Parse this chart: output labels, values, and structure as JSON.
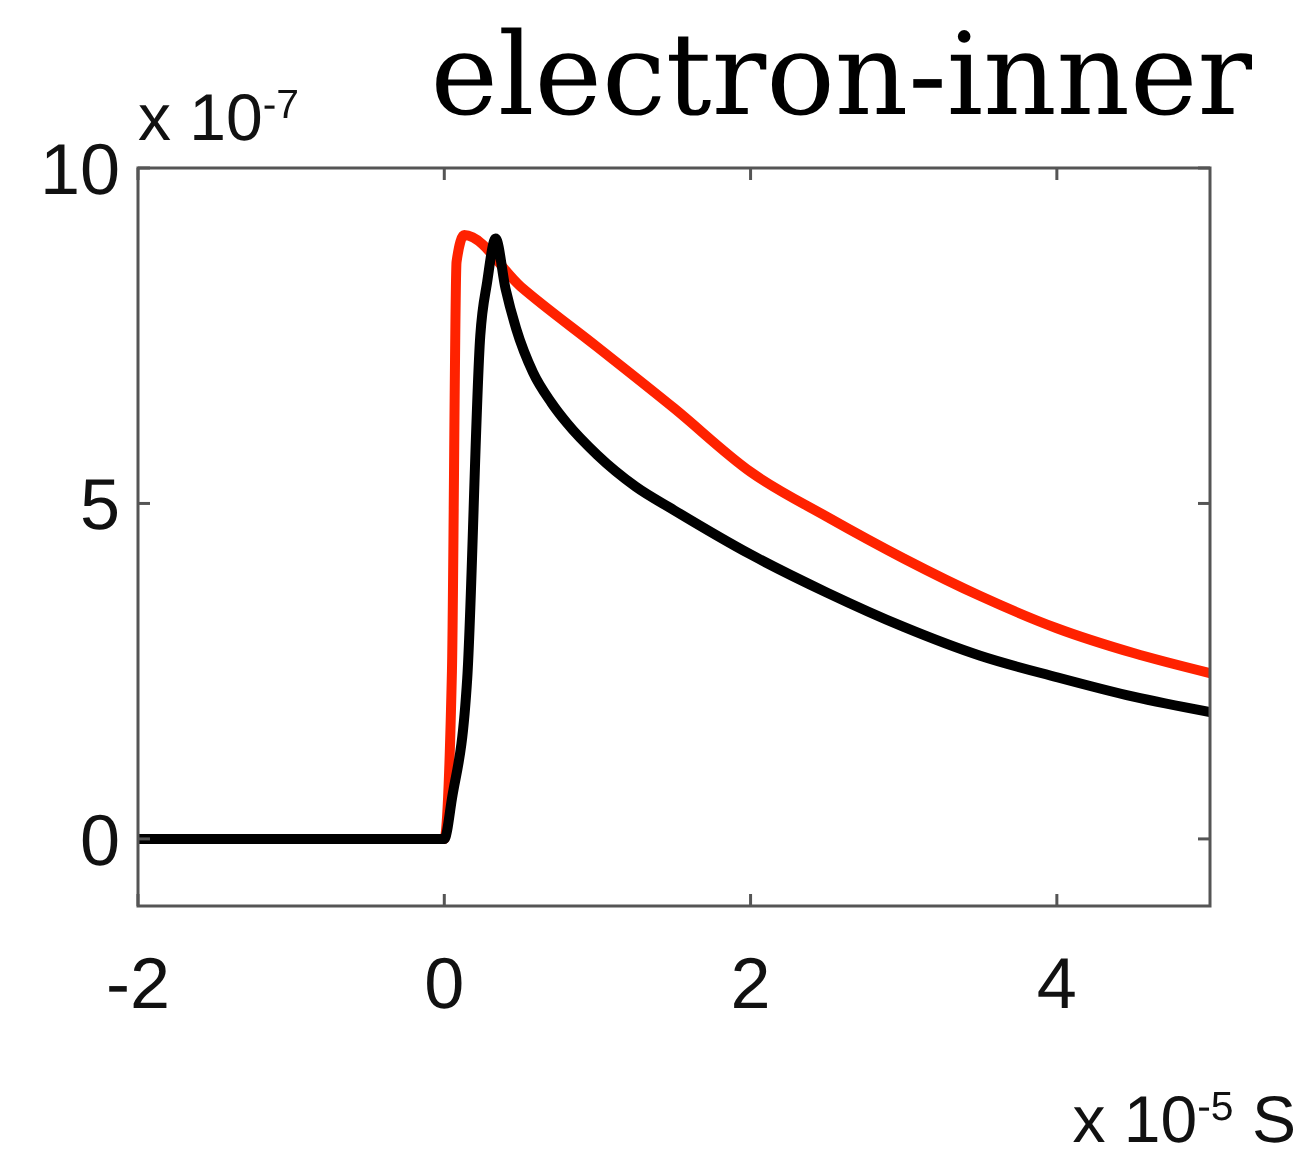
{
  "chart_data": {
    "type": "line",
    "title": "electron-inner",
    "ylabel": "x 10$^{-7}$",
    "xlabel": "x 10$^{-5}$ S",
    "xlim": [
      -2,
      5
    ],
    "xticks": [
      -2,
      0,
      2,
      4
    ],
    "ylim": [
      -1,
      10
    ],
    "yticks": [
      0,
      5,
      10
    ],
    "line_style": "solid",
    "series": [
      {
        "color": "#ff2200",
        "x": [
          -2,
          0,
          0.05,
          0.08,
          0.13,
          0.5,
          1.0,
          1.5,
          2.0,
          2.5,
          3.0,
          3.5,
          4.0,
          4.5,
          5.0
        ],
        "values": [
          0,
          0,
          2.5,
          8.6,
          9.0,
          8.23,
          7.33,
          6.42,
          5.47,
          4.8,
          4.18,
          3.62,
          3.14,
          2.77,
          2.47
        ]
      },
      {
        "color": "#000000",
        "x": [
          -2,
          0,
          0.05,
          0.15,
          0.235,
          0.28,
          0.335,
          0.4,
          0.47,
          0.58,
          0.7,
          0.8,
          1.0,
          1.25,
          1.5,
          2.0,
          2.5,
          3.0,
          3.5,
          4.0,
          4.5,
          5.0
        ],
        "values": [
          0,
          0,
          0.6,
          2.4,
          7.5,
          8.3,
          8.95,
          8.2,
          7.6,
          6.95,
          6.5,
          6.2,
          5.72,
          5.25,
          4.9,
          4.24,
          3.67,
          3.16,
          2.73,
          2.41,
          2.12,
          1.89
        ]
      }
    ]
  }
}
